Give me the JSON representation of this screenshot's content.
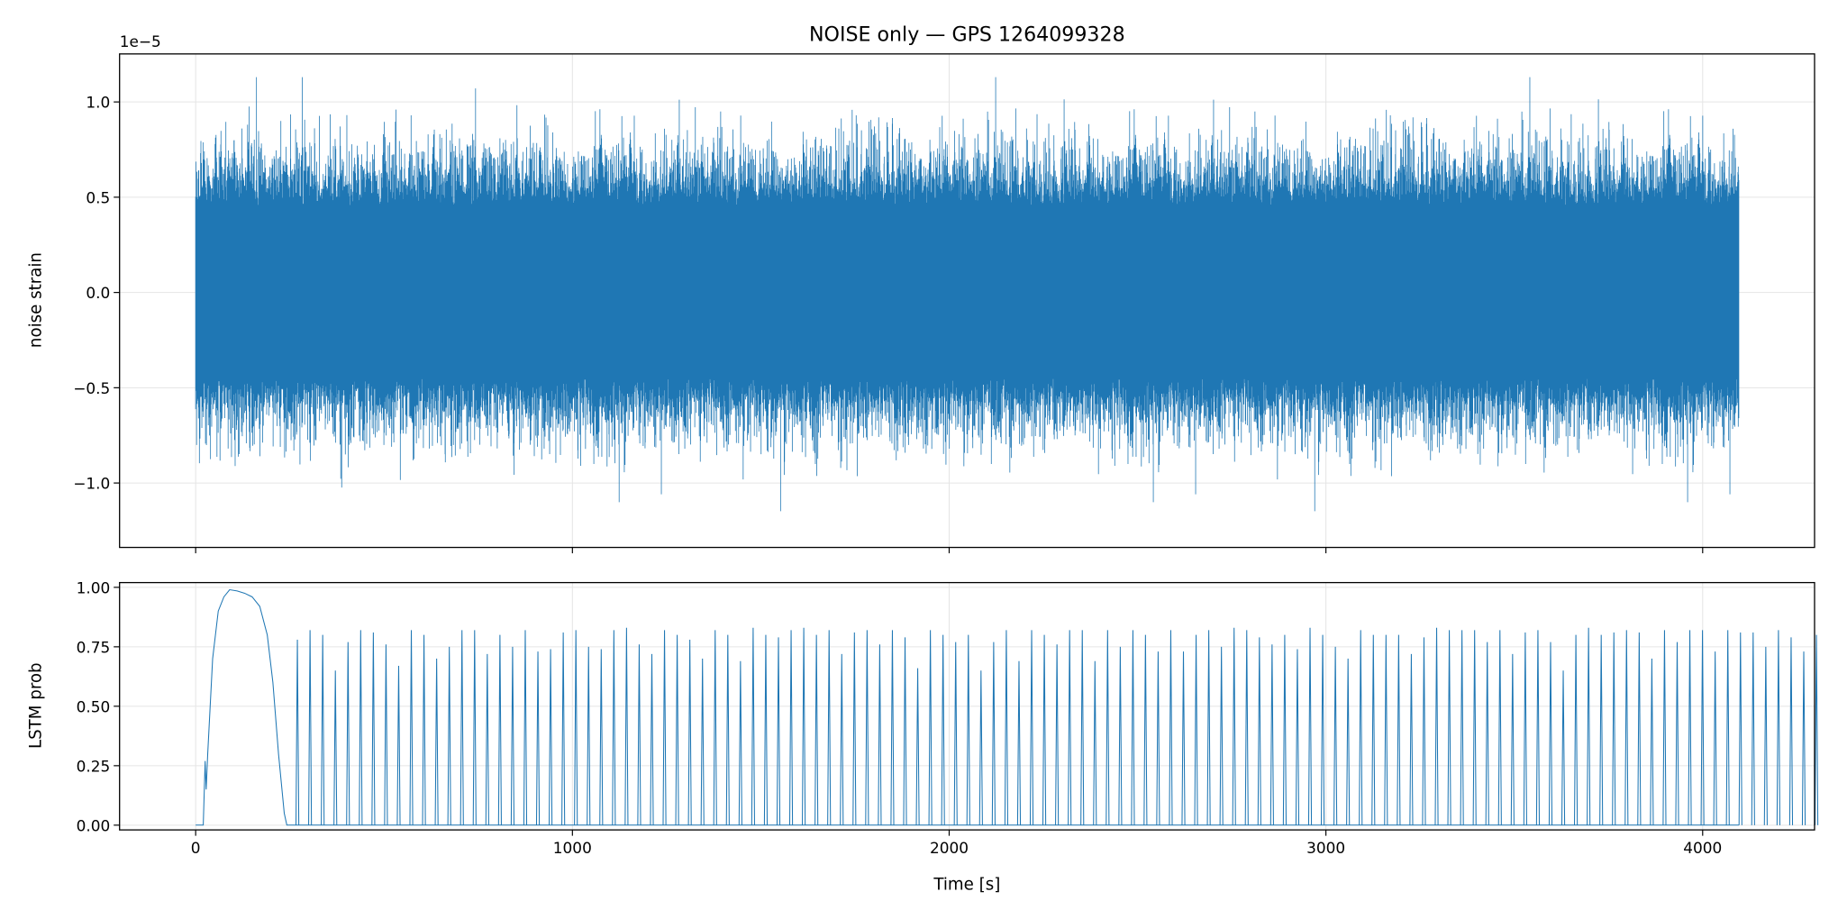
{
  "chart_data": [
    {
      "type": "line",
      "title": "NOISE only — GPS 1264099328",
      "xlabel": "",
      "ylabel": "noise strain",
      "offset_label": "1e−5",
      "xlim": [
        -202,
        4297
      ],
      "ylim": [
        -1.338,
        1.252
      ],
      "y_scale": 1e-05,
      "xticks": [
        0,
        1000,
        2000,
        3000,
        4000
      ],
      "yticks": [
        -1.0,
        -0.5,
        0.0,
        0.5,
        1.0
      ],
      "ytick_labels": [
        "−1.0",
        "−0.5",
        "0.0",
        "0.5",
        "1.0"
      ],
      "grid": true,
      "color": "#1f77b4",
      "series": [
        {
          "name": "noise strain",
          "x_range": [
            0,
            4096
          ],
          "typical_envelope": [
            -0.6,
            0.6
          ],
          "max": 1.13,
          "min": -1.22
        }
      ]
    },
    {
      "type": "line",
      "xlabel": "Time [s]",
      "ylabel": "LSTM prob",
      "xlim": [
        -202,
        4297
      ],
      "ylim": [
        -0.02,
        1.02
      ],
      "xticks": [
        0,
        1000,
        2000,
        3000,
        4000
      ],
      "xtick_labels": [
        "0",
        "1000",
        "2000",
        "3000",
        "4000"
      ],
      "yticks": [
        0,
        0.25,
        0.5,
        0.75,
        1.0
      ],
      "ytick_labels": [
        "0.00",
        "0.25",
        "0.50",
        "0.75",
        "1.00"
      ],
      "grid": true,
      "color": "#1f77b4",
      "initial_bump": {
        "x": [
          0,
          20,
          25,
          28,
          32,
          45,
          60,
          75,
          90,
          110,
          130,
          150,
          170,
          190,
          205,
          220,
          235,
          242,
          4096
        ],
        "y": [
          0,
          0,
          0.27,
          0.15,
          0.3,
          0.7,
          0.9,
          0.96,
          0.99,
          0.985,
          0.975,
          0.96,
          0.92,
          0.8,
          0.6,
          0.3,
          0.05,
          0,
          0
        ]
      },
      "spikes": {
        "start": 270,
        "period": 33.6,
        "heights": [
          0.78,
          0.82,
          0.8,
          0.65,
          0.77,
          0.82,
          0.81,
          0.76,
          0.67,
          0.82,
          0.8,
          0.7,
          0.75,
          0.82,
          0.82,
          0.72,
          0.8,
          0.75,
          0.82,
          0.73,
          0.74,
          0.81,
          0.82,
          0.75,
          0.74,
          0.82,
          0.83,
          0.76,
          0.72,
          0.82,
          0.8,
          0.78,
          0.7,
          0.82,
          0.8,
          0.69,
          0.83,
          0.8,
          0.79,
          0.82,
          0.83,
          0.8,
          0.82,
          0.72,
          0.81,
          0.82,
          0.76,
          0.82,
          0.79,
          0.66,
          0.82,
          0.8,
          0.77,
          0.8,
          0.65,
          0.77,
          0.82,
          0.69,
          0.82,
          0.8,
          0.76,
          0.82,
          0.82,
          0.69,
          0.82,
          0.75,
          0.82,
          0.8,
          0.73,
          0.82,
          0.73,
          0.8,
          0.82,
          0.75,
          0.83,
          0.82,
          0.79,
          0.76,
          0.8,
          0.74,
          0.83,
          0.8,
          0.75,
          0.7,
          0.82,
          0.8,
          0.8,
          0.8,
          0.72,
          0.79,
          0.83,
          0.82,
          0.82,
          0.82,
          0.77,
          0.82,
          0.72,
          0.81,
          0.82,
          0.77,
          0.65,
          0.8,
          0.83,
          0.8,
          0.81,
          0.82,
          0.81,
          0.7,
          0.82,
          0.77,
          0.82,
          0.82,
          0.73,
          0.82,
          0.81,
          0.81,
          0.75,
          0.82,
          0.79,
          0.73,
          0.8
        ]
      }
    }
  ]
}
